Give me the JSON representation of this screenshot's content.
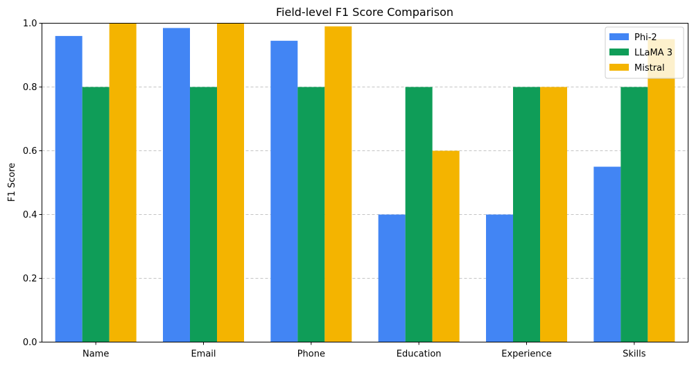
{
  "chart_data": {
    "type": "bar",
    "title": "Field-level F1 Score Comparison",
    "xlabel": "",
    "ylabel": "F1 Score",
    "ylim": [
      0,
      1.0
    ],
    "yticks": [
      "0.0",
      "0.2",
      "0.4",
      "0.6",
      "0.8",
      "1.0"
    ],
    "grid": "y-dashed",
    "legend_position": "top-right",
    "categories": [
      "Name",
      "Email",
      "Phone",
      "Education",
      "Experience",
      "Skills"
    ],
    "series": [
      {
        "name": "Phi-2",
        "color": "#4285F4",
        "values": [
          0.96,
          0.985,
          0.945,
          0.4,
          0.4,
          0.55
        ]
      },
      {
        "name": "LLaMA 3",
        "color": "#0F9D58",
        "values": [
          0.8,
          0.8,
          0.8,
          0.8,
          0.8,
          0.8
        ]
      },
      {
        "name": "Mistral",
        "color": "#F4B400",
        "values": [
          1.0,
          1.0,
          0.99,
          0.6,
          0.8,
          0.95
        ]
      }
    ]
  }
}
